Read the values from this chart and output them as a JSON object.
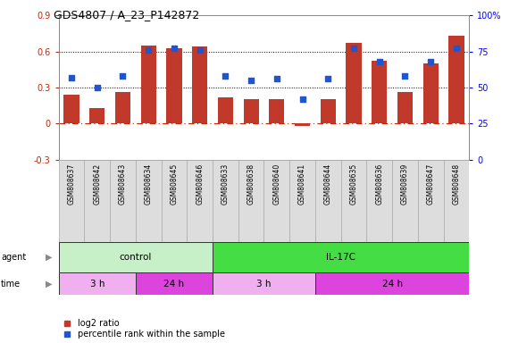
{
  "title": "GDS4807 / A_23_P142872",
  "samples": [
    "GSM808637",
    "GSM808642",
    "GSM808643",
    "GSM808634",
    "GSM808645",
    "GSM808646",
    "GSM808633",
    "GSM808638",
    "GSM808640",
    "GSM808641",
    "GSM808644",
    "GSM808635",
    "GSM808636",
    "GSM808639",
    "GSM808647",
    "GSM808648"
  ],
  "log2_ratio": [
    0.24,
    0.13,
    0.26,
    0.65,
    0.63,
    0.64,
    0.22,
    0.2,
    0.2,
    -0.02,
    0.2,
    0.67,
    0.52,
    0.26,
    0.5,
    0.73
  ],
  "percentile": [
    57,
    50,
    58,
    76,
    77,
    76,
    58,
    55,
    56,
    42,
    56,
    77,
    68,
    58,
    68,
    77
  ],
  "bar_color": "#c0392b",
  "dot_color": "#2255cc",
  "left_ylim": [
    -0.3,
    0.9
  ],
  "right_ylim": [
    0,
    100
  ],
  "left_yticks": [
    -0.3,
    0.0,
    0.3,
    0.6,
    0.9
  ],
  "left_yticklabels": [
    "-0.3",
    "0",
    "0.3",
    "0.6",
    "0.9"
  ],
  "right_yticks": [
    0,
    25,
    50,
    75,
    100
  ],
  "right_yticklabels": [
    "0",
    "25",
    "50",
    "75",
    "100%"
  ],
  "hline_vals": [
    0.3,
    0.6
  ],
  "zero_line_val": 0.0,
  "agent_groups": [
    {
      "label": "control",
      "start": 0,
      "end": 6,
      "color": "#c8f0c8"
    },
    {
      "label": "IL-17C",
      "start": 6,
      "end": 16,
      "color": "#44dd44"
    }
  ],
  "time_groups": [
    {
      "label": "3 h",
      "start": 0,
      "end": 3,
      "color": "#f0b0f0"
    },
    {
      "label": "24 h",
      "start": 3,
      "end": 6,
      "color": "#dd44dd"
    },
    {
      "label": "3 h",
      "start": 6,
      "end": 10,
      "color": "#f0b0f0"
    },
    {
      "label": "24 h",
      "start": 10,
      "end": 16,
      "color": "#dd44dd"
    }
  ],
  "legend_items": [
    {
      "label": "log2 ratio",
      "color": "#c0392b"
    },
    {
      "label": "percentile rank within the sample",
      "color": "#2255cc"
    }
  ],
  "background_color": "#ffffff",
  "label_bg": "#dddddd",
  "label_border": "#aaaaaa"
}
